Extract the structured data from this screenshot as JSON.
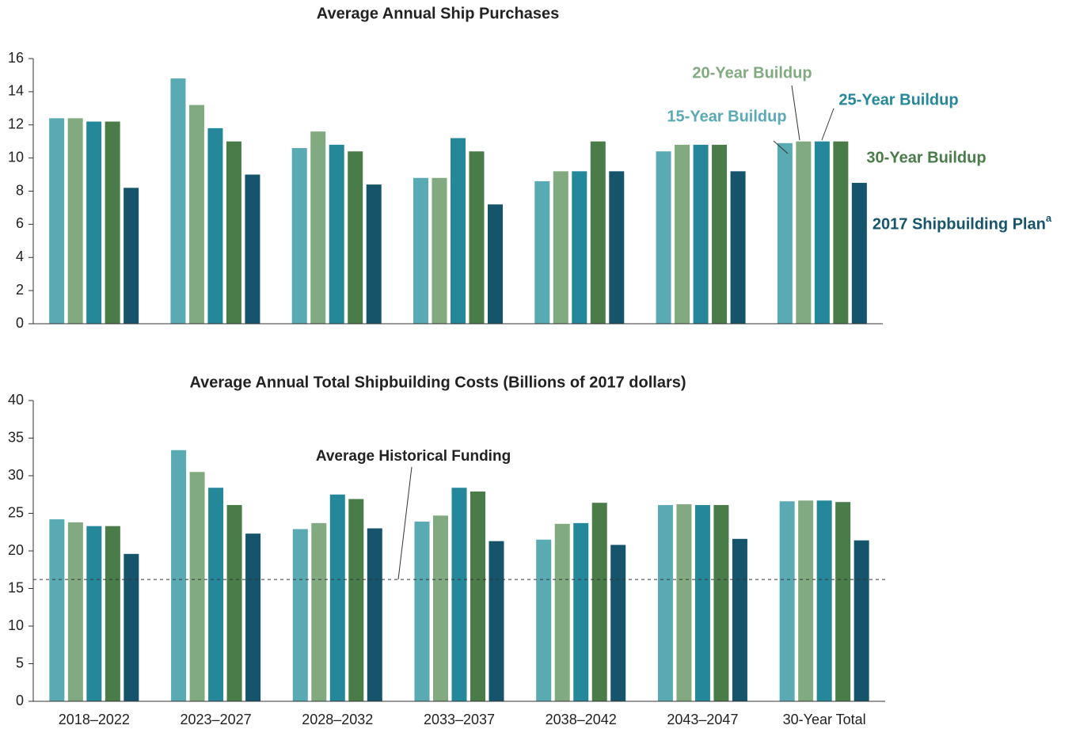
{
  "chart_data": [
    {
      "type": "bar",
      "title": "Average Annual Ship Purchases",
      "series": [
        {
          "name": "15-Year Buildup",
          "color": "#5aaab4",
          "values": [
            12.4,
            14.8,
            10.6,
            8.8,
            8.6,
            10.4,
            10.9
          ]
        },
        {
          "name": "20-Year Buildup",
          "color": "#82aa80",
          "values": [
            12.4,
            13.2,
            11.6,
            8.8,
            9.2,
            10.8,
            11.0
          ]
        },
        {
          "name": "25-Year Buildup",
          "color": "#25879a",
          "values": [
            12.2,
            11.8,
            10.8,
            11.2,
            9.2,
            10.8,
            11.0
          ]
        },
        {
          "name": "30-Year Buildup",
          "color": "#4a7c4a",
          "values": [
            12.2,
            11.0,
            10.4,
            10.4,
            11.0,
            10.8,
            11.0
          ]
        },
        {
          "name": "2017 Shipbuilding Plan",
          "footnote": "a",
          "color": "#16546c",
          "values": [
            8.2,
            9.0,
            8.4,
            7.2,
            9.2,
            9.2,
            8.5
          ]
        }
      ],
      "ylim": [
        0,
        16
      ],
      "yticks": [
        0,
        2,
        4,
        6,
        8,
        10,
        12,
        14,
        16
      ]
    },
    {
      "type": "bar",
      "title": "Average Annual Total Shipbuilding Costs (Billions of 2017 dollars)",
      "categories": [
        "2018–2022",
        "2023–2027",
        "2028–2032",
        "2033–2037",
        "2038–2042",
        "2043–2047",
        "30-Year Total"
      ],
      "series": [
        {
          "color": "#5aaab4",
          "values": [
            24.2,
            33.4,
            22.9,
            23.9,
            21.5,
            26.1,
            26.6
          ]
        },
        {
          "color": "#82aa80",
          "values": [
            23.8,
            30.5,
            23.7,
            24.7,
            23.6,
            26.2,
            26.7
          ]
        },
        {
          "color": "#25879a",
          "values": [
            23.3,
            28.4,
            27.5,
            28.4,
            23.7,
            26.1,
            26.7
          ]
        },
        {
          "color": "#4a7c4a",
          "values": [
            23.3,
            26.1,
            26.9,
            27.9,
            26.4,
            26.1,
            26.5
          ]
        },
        {
          "color": "#16546c",
          "values": [
            19.6,
            22.3,
            23.0,
            21.3,
            20.8,
            21.6,
            21.4
          ]
        }
      ],
      "reference_line": {
        "label": "Average Historical Funding",
        "value": 16.2
      },
      "ylim": [
        0,
        40
      ],
      "yticks": [
        0,
        5,
        10,
        15,
        20,
        25,
        30,
        35,
        40
      ]
    }
  ]
}
